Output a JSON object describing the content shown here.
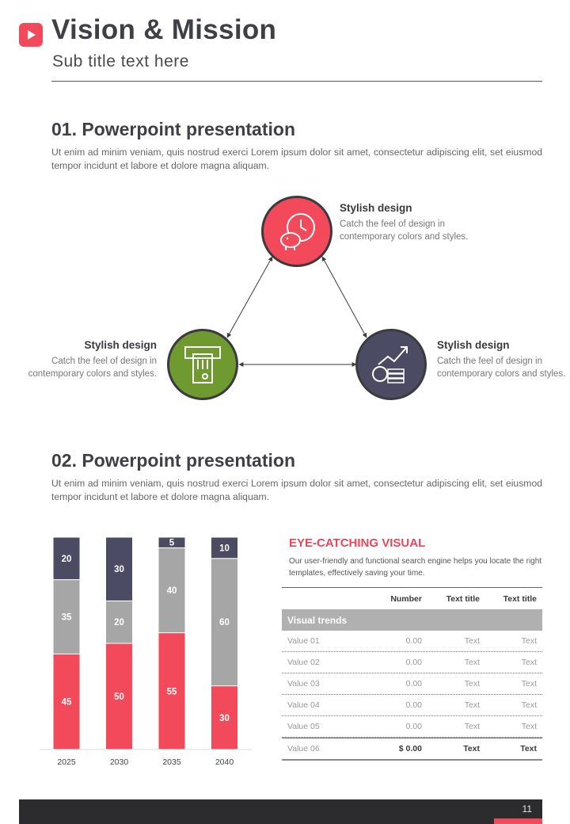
{
  "header": {
    "title": "Vision & Mission",
    "subtitle": "Sub title text here"
  },
  "section1": {
    "heading": "01. Powerpoint presentation",
    "body": "Ut enim ad minim veniam, quis nostrud exerci  Lorem ipsum dolor sit amet, consectetur adipiscing elit, set eiusmod tempor incidunt et labore et dolore magna aliquam."
  },
  "cycle": {
    "nodes": [
      {
        "heading": "Stylish design",
        "text": "Catch the feel of design in contemporary colors  and styles.",
        "icon": "piggy-bank-clock-icon",
        "color": "#f24a5b"
      },
      {
        "heading": "Stylish design",
        "text": "Catch the feel of design in contemporary colors and styles.",
        "icon": "atm-card-icon",
        "color": "#6e9a2f"
      },
      {
        "heading": "Stylish design",
        "text": "Catch the feel of design in contemporary colors and styles.",
        "icon": "coins-growth-icon",
        "color": "#4b4c63"
      }
    ]
  },
  "section2": {
    "heading": "02. Powerpoint presentation",
    "body": "Ut enim ad minim veniam, quis nostrud exerci  Lorem ipsum dolor sit amet, consectetur adipiscing elit, set eiusmod tempor incidunt et labore et dolore magna aliquam."
  },
  "chart_data": {
    "type": "bar",
    "stacked": true,
    "categories": [
      "2025",
      "2030",
      "2035",
      "2040"
    ],
    "series": [
      {
        "color": "#f24a5b",
        "values": [
          45,
          50,
          55,
          30
        ]
      },
      {
        "color": "#a6a6a6",
        "values": [
          35,
          20,
          40,
          60
        ]
      },
      {
        "color": "#4b4c63",
        "values": [
          20,
          30,
          5,
          10
        ]
      }
    ],
    "ylim": [
      0,
      100
    ],
    "grid": false,
    "title": "",
    "xlabel": "",
    "ylabel": ""
  },
  "visual": {
    "heading": "EYE-CATCHING VISUAL",
    "text": "Our user-friendly and functional search engine helps you locate the right templates, effectively saving your time."
  },
  "table": {
    "columns": [
      "",
      "Number",
      "Text title",
      "Text title"
    ],
    "section_label": "Visual trends",
    "rows": [
      [
        "Value 01",
        "0.00",
        "Text",
        "Text"
      ],
      [
        "Value 02",
        "0.00",
        "Text",
        "Text"
      ],
      [
        "Value 03",
        "0.00",
        "Text",
        "Text"
      ],
      [
        "Value 04",
        "0.00",
        "Text",
        "Text"
      ],
      [
        "Value 05",
        "0.00",
        "Text",
        "Text"
      ]
    ],
    "total": [
      "Value 06",
      "$ 0.00",
      "Text",
      "Text"
    ]
  },
  "footer": {
    "page_number": "11"
  },
  "colors": {
    "accent": "#f24a5b",
    "dark": "#2c2c2e",
    "green": "#6e9a2f",
    "navy": "#4b4c63",
    "gray": "#a6a6a6"
  }
}
